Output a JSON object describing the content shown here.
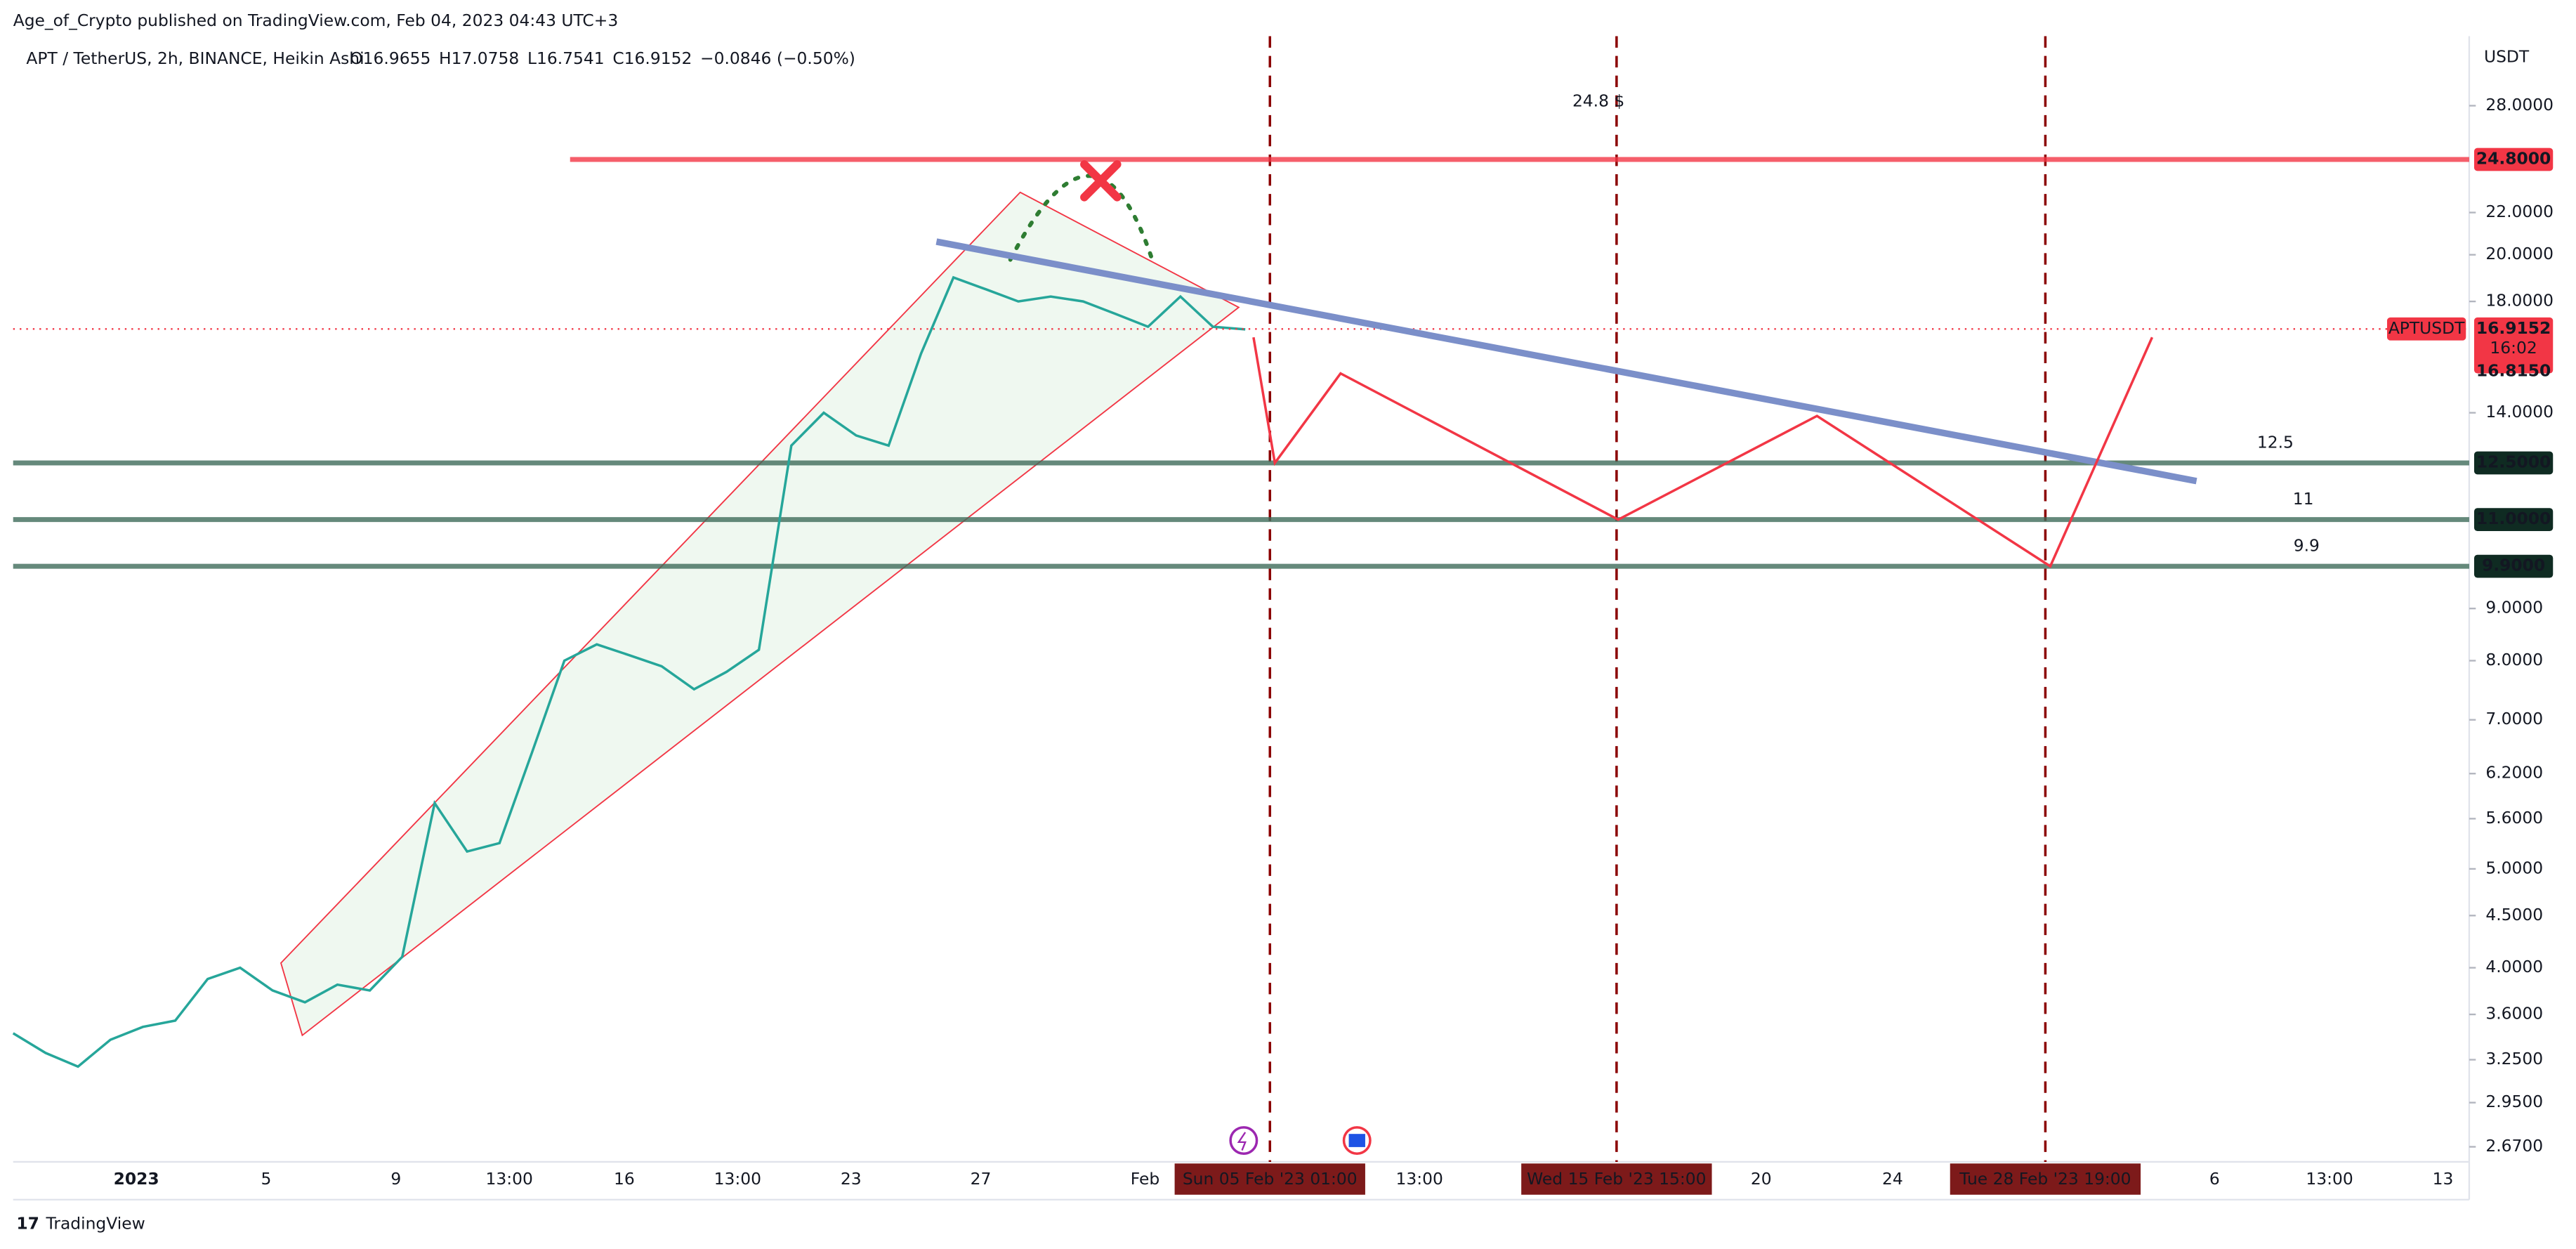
{
  "header": "Age_of_Crypto published on TradingView.com, Feb 04, 2023 04:43 UTC+3",
  "footer": "TradingView",
  "chart_data": {
    "type": "line",
    "title": "APT / TetherUS, 2h, BINANCE, Heikin Ashi",
    "ohlc": [
      "O16.9655",
      "H17.0758",
      "L16.7541",
      "C16.9152",
      "−0.0846 (−0.50%)"
    ],
    "y_unit": "USDT",
    "log_scale": true,
    "ylim": [
      2.6,
      33
    ],
    "yticks": [
      {
        "value": 28,
        "label": "28.0000"
      },
      {
        "value": 22,
        "label": "22.0000"
      },
      {
        "value": 20,
        "label": "20.0000"
      },
      {
        "value": 18,
        "label": "18.0000"
      },
      {
        "value": 14,
        "label": "14.0000"
      },
      {
        "value": 9,
        "label": "9.0000"
      },
      {
        "value": 8,
        "label": "8.0000"
      },
      {
        "value": 7,
        "label": "7.0000"
      },
      {
        "value": 6.2,
        "label": "6.2000"
      },
      {
        "value": 5.6,
        "label": "5.6000"
      },
      {
        "value": 5,
        "label": "5.0000"
      },
      {
        "value": 4.5,
        "label": "4.5000"
      },
      {
        "value": 4,
        "label": "4.0000"
      },
      {
        "value": 3.6,
        "label": "3.6000"
      },
      {
        "value": 3.25,
        "label": "3.2500"
      },
      {
        "value": 2.95,
        "label": "2.9500"
      },
      {
        "value": 2.67,
        "label": "2.6700"
      }
    ],
    "time_axis": [
      {
        "label": "2023"
      },
      {
        "label": "5"
      },
      {
        "label": "9"
      },
      {
        "label": "13:00"
      },
      {
        "label": "16"
      },
      {
        "label": "13:00"
      },
      {
        "label": "23"
      },
      {
        "label": "27"
      },
      {
        "label": "Feb"
      },
      {
        "label": "Sun 05 Feb '23   01:00",
        "highlight": true
      },
      {
        "label": "13:00"
      },
      {
        "label": "Wed 15 Feb '23   15:00",
        "highlight": true
      },
      {
        "label": "20"
      },
      {
        "label": "24"
      },
      {
        "label": "Tue 28 Feb '23   19:00",
        "highlight": true
      },
      {
        "label": "6"
      },
      {
        "label": "13:00"
      },
      {
        "label": "13"
      }
    ],
    "series": [
      {
        "name": "APTUSDT",
        "color": "#26a69a",
        "values": [
          3.45,
          3.3,
          3.2,
          3.4,
          3.5,
          3.55,
          3.9,
          4.0,
          3.8,
          3.7,
          3.85,
          3.8,
          4.1,
          5.8,
          5.2,
          5.3,
          6.5,
          8.0,
          8.3,
          8.1,
          7.9,
          7.5,
          7.8,
          8.2,
          13.0,
          14.0,
          13.3,
          13.0,
          16.0,
          19.0,
          18.5,
          18.0,
          18.2,
          18.0,
          17.5,
          17.0,
          18.2,
          17.0,
          16.9
        ]
      }
    ],
    "last_price": {
      "value": 16.9152,
      "label": "16.9152",
      "countdown": "16:02",
      "low_label": "16.8150",
      "name": "APTUSDT",
      "color": "#f23645"
    },
    "levels": [
      {
        "value": 24.8,
        "label": "24.8000",
        "color": "#f23645",
        "note": "24.8 $"
      },
      {
        "value": 12.5,
        "label": "12.5000",
        "color": "#3f6b5a",
        "note": "12.5"
      },
      {
        "value": 11,
        "label": "11.0000",
        "color": "#3f6b5a",
        "note": "11"
      },
      {
        "value": 9.9,
        "label": "9.9000",
        "color": "#3f6b5a",
        "note": "9.9"
      }
    ],
    "trendline": {
      "color": "#7b8fc9",
      "values": [
        20.6,
        12.0
      ]
    },
    "projection": {
      "color": "#f23645",
      "values": [
        16.6,
        12.5,
        15.3,
        11,
        13.9,
        9.9,
        16.6
      ]
    }
  }
}
